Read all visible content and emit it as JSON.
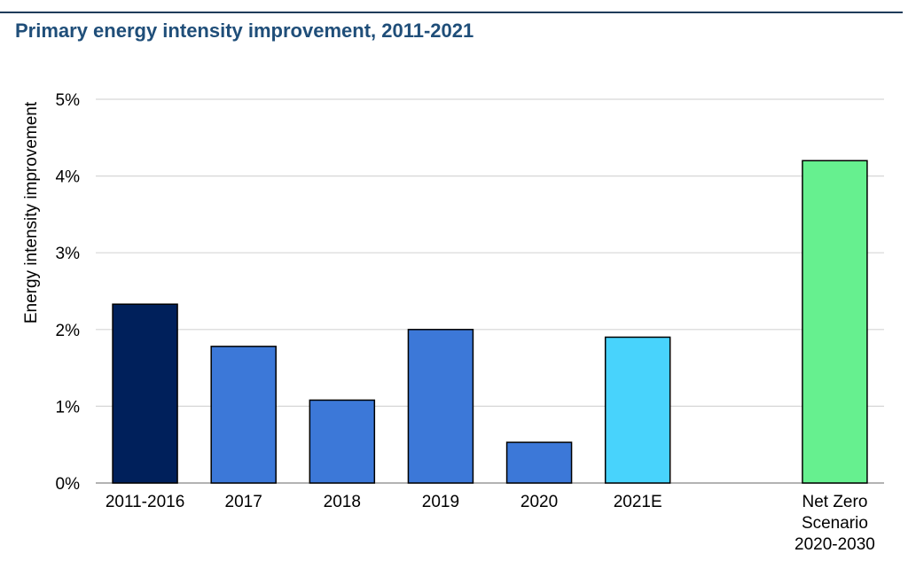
{
  "chart_data": {
    "type": "bar",
    "title": "Primary energy intensity improvement, 2011-2021",
    "xlabel": "",
    "ylabel": "Energy intensity improvement",
    "ylim": [
      0,
      5
    ],
    "yticks": [
      "0%",
      "1%",
      "2%",
      "3%",
      "4%",
      "5%"
    ],
    "grid": true,
    "categories": [
      "2011-2016",
      "2017",
      "2018",
      "2019",
      "2020",
      "2021E",
      "Net Zero Scenario 2020-2030"
    ],
    "category_lines": [
      [
        "2011-2016"
      ],
      [
        "2017"
      ],
      [
        "2018"
      ],
      [
        "2019"
      ],
      [
        "2020"
      ],
      [
        "2021E"
      ],
      [
        "Net Zero",
        "Scenario",
        "2020-2030"
      ]
    ],
    "values": [
      2.33,
      1.78,
      1.08,
      2.0,
      0.53,
      1.9,
      4.2
    ],
    "colors": [
      "#00205b",
      "#3c78d8",
      "#3c78d8",
      "#3c78d8",
      "#3c78d8",
      "#48d3fc",
      "#66f08f"
    ]
  }
}
